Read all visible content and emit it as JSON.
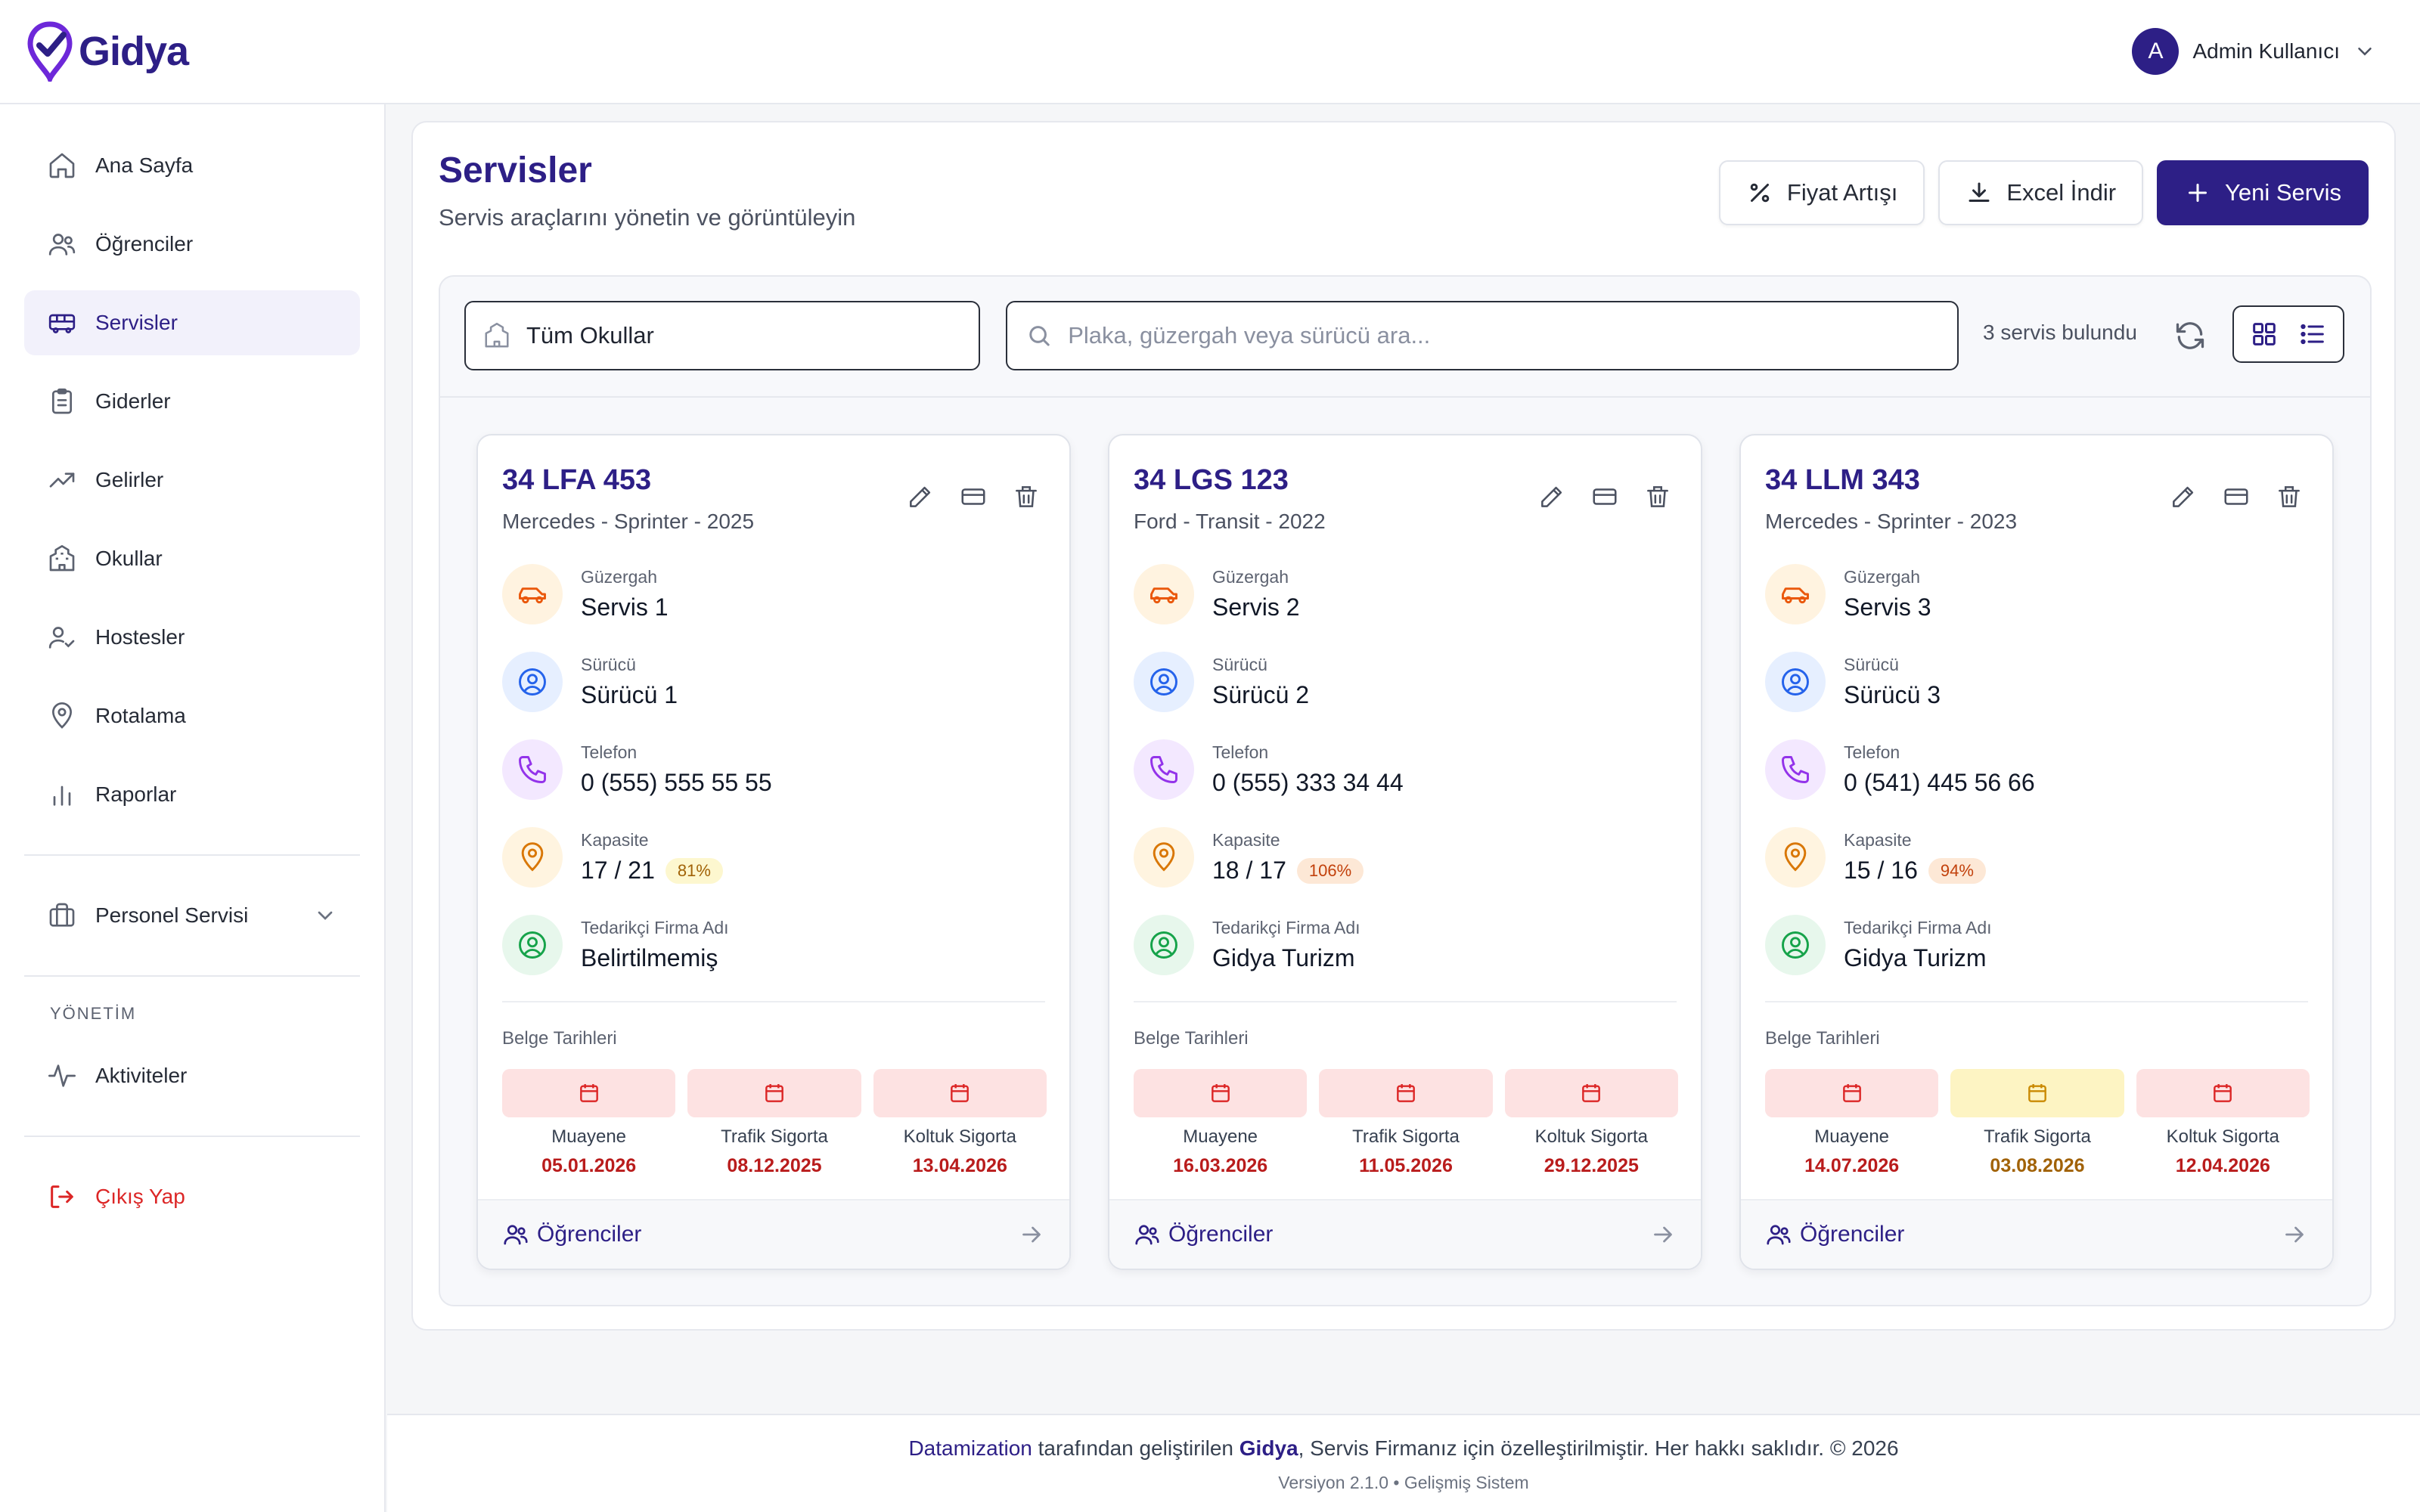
{
  "app": {
    "brand": "Gidya"
  },
  "user": {
    "initial": "A",
    "name": "Admin Kullanıcı"
  },
  "sidebar": {
    "items": [
      {
        "label": "Ana Sayfa",
        "icon": "home-icon"
      },
      {
        "label": "Öğrenciler",
        "icon": "users-icon"
      },
      {
        "label": "Servisler",
        "icon": "bus-icon",
        "active": true
      },
      {
        "label": "Giderler",
        "icon": "clipboard-icon"
      },
      {
        "label": "Gelirler",
        "icon": "trending-up-icon"
      },
      {
        "label": "Okullar",
        "icon": "school-icon"
      },
      {
        "label": "Hostesler",
        "icon": "user-check-icon"
      },
      {
        "label": "Rotalama",
        "icon": "map-pin-icon"
      },
      {
        "label": "Raporlar",
        "icon": "bar-chart-icon"
      }
    ],
    "personnel": "Personel Servisi",
    "section_label": "YÖNETİM",
    "activities": "Aktiviteler",
    "logout": "Çıkış Yap"
  },
  "page": {
    "title": "Servisler",
    "subtitle": "Servis araçlarını yönetin ve görüntüleyin",
    "price_increase": "Fiyat Artışı",
    "excel_download": "Excel İndir",
    "new_service": "Yeni Servis"
  },
  "filters": {
    "school_select": "Tüm Okullar",
    "search_placeholder": "Plaka, güzergah veya sürücü ara...",
    "search_value": "",
    "result_count": "3 servis bulundu"
  },
  "labels": {
    "route": "Güzergah",
    "driver": "Sürücü",
    "phone": "Telefon",
    "capacity": "Kapasite",
    "supplier": "Tedarikçi Firma Adı",
    "docs": "Belge Tarihleri",
    "inspection": "Muayene",
    "traffic_insurance": "Trafik Sigorta",
    "seat_insurance": "Koltuk Sigorta",
    "students": "Öğrenciler"
  },
  "colors": {
    "brand": "#2d1f86",
    "danger": "#dc2626",
    "warning": "#ca8a04"
  },
  "services": [
    {
      "plate": "34 LFA 453",
      "model": "Mercedes - Sprinter - 2025",
      "route": "Servis 1",
      "driver": "Sürücü 1",
      "phone": "0 (555) 555 55 55",
      "capacity": "17 / 21",
      "capacity_pct": "81%",
      "capacity_level": "y",
      "supplier": "Belirtilmemiş",
      "inspection": "05.01.2026",
      "traffic": "08.12.2025",
      "seat": "13.04.2026",
      "traffic_status": "red"
    },
    {
      "plate": "34 LGS 123",
      "model": "Ford - Transit - 2022",
      "route": "Servis 2",
      "driver": "Sürücü 2",
      "phone": "0 (555) 333 34 44",
      "capacity": "18 / 17",
      "capacity_pct": "106%",
      "capacity_level": "o",
      "supplier": "Gidya Turizm",
      "inspection": "16.03.2026",
      "traffic": "11.05.2026",
      "seat": "29.12.2025",
      "traffic_status": "red"
    },
    {
      "plate": "34 LLM 343",
      "model": "Mercedes - Sprinter - 2023",
      "route": "Servis 3",
      "driver": "Sürücü 3",
      "phone": "0 (541) 445 56 66",
      "capacity": "15 / 16",
      "capacity_pct": "94%",
      "capacity_level": "o",
      "supplier": "Gidya Turizm",
      "inspection": "14.07.2026",
      "traffic": "03.08.2026",
      "seat": "12.04.2026",
      "traffic_status": "yellow"
    }
  ],
  "footer": {
    "company": "Datamization",
    "text1": " tarafından geliştirilen ",
    "brand": "Gidya",
    "text2": ", Servis Firmanız için özelleştirilmiştir. Her hakkı saklıdır. © 2026",
    "version": "Versiyon 2.1.0 • Gelişmiş Sistem"
  }
}
